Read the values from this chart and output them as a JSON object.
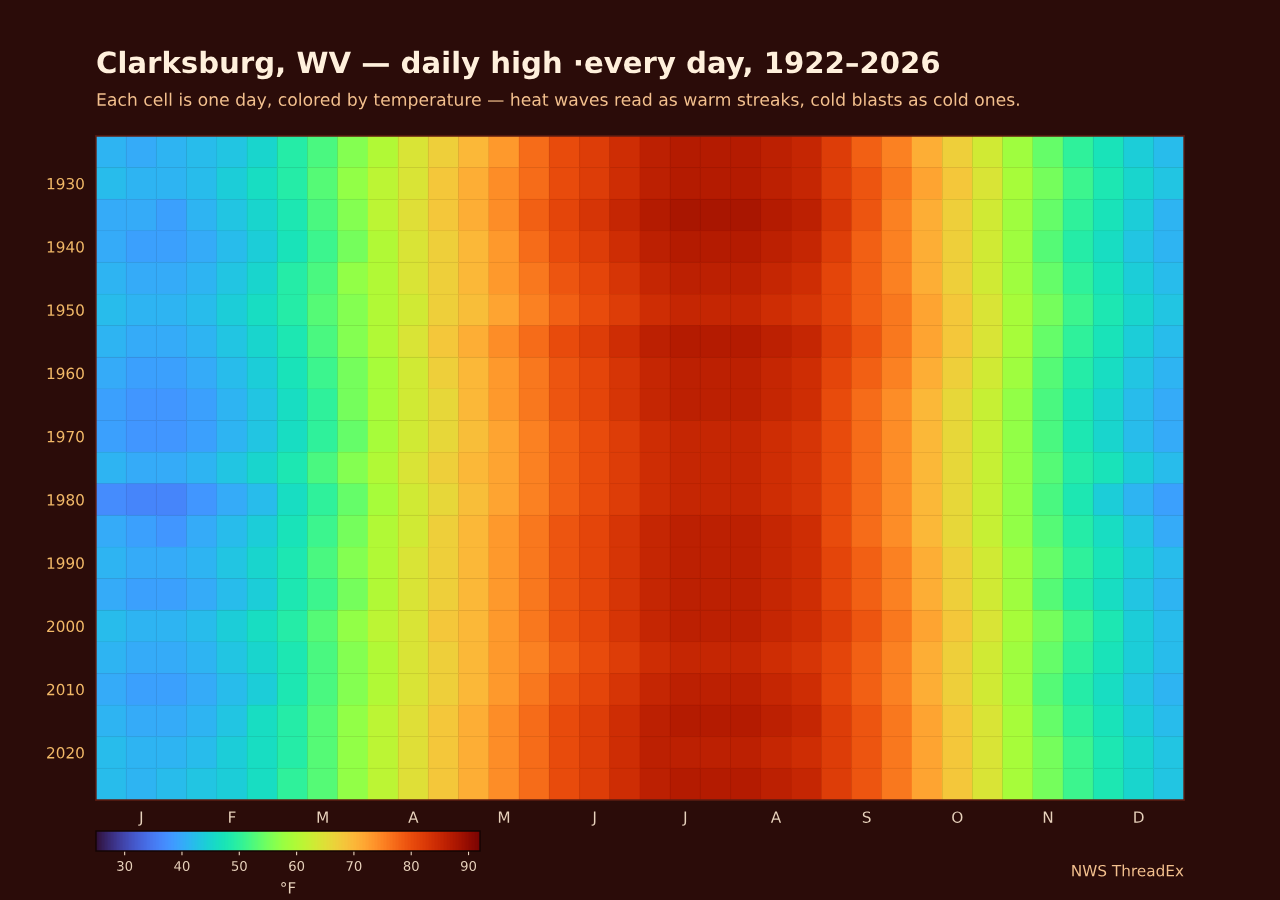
{
  "chart_data": {
    "type": "heatmap",
    "title": "Clarksburg, WV — daily high ·every day, 1922–2026",
    "subtitle": "Each cell is one day, colored by temperature — heat waves read as warm streaks, cold blasts as cold ones.",
    "categories": [
      null,
      "J",
      null,
      null,
      "F",
      null,
      null,
      "M",
      null,
      null,
      "A",
      null,
      null,
      "M",
      null,
      null,
      "J",
      null,
      null,
      "J",
      null,
      null,
      "A",
      null,
      null,
      "S",
      null,
      null,
      "O",
      null,
      null,
      "N",
      null,
      null,
      "D",
      null
    ],
    "y_categories": [
      null,
      "1930",
      null,
      "1940",
      null,
      "1950",
      null,
      "1960",
      null,
      "1970",
      null,
      "1980",
      null,
      "1990",
      null,
      "2000",
      null,
      "2010",
      null,
      "2020",
      null
    ],
    "cells": [
      [
        41,
        40,
        41,
        42,
        43,
        45,
        49,
        52,
        56,
        60,
        64,
        67,
        70,
        73,
        77,
        80,
        82,
        84,
        86,
        87,
        87,
        87,
        86,
        85,
        82,
        78,
        75,
        71,
        67,
        63,
        58,
        54,
        50,
        47,
        44,
        42
      ],
      [
        42,
        41,
        41,
        42,
        44,
        46,
        49,
        53,
        57,
        61,
        64,
        68,
        71,
        74,
        77,
        80,
        82,
        84,
        86,
        87,
        87,
        87,
        86,
        85,
        82,
        79,
        76,
        72,
        68,
        64,
        59,
        55,
        51,
        48,
        45,
        43
      ],
      [
        40,
        40,
        39,
        41,
        43,
        45,
        48,
        52,
        56,
        61,
        65,
        68,
        71,
        74,
        78,
        81,
        83,
        85,
        87,
        88,
        88,
        88,
        87,
        86,
        83,
        79,
        75,
        71,
        67,
        63,
        58,
        54,
        50,
        47,
        44,
        41
      ],
      [
        40,
        39,
        39,
        40,
        42,
        44,
        47,
        51,
        55,
        60,
        64,
        67,
        70,
        73,
        77,
        80,
        82,
        84,
        86,
        87,
        87,
        87,
        86,
        85,
        82,
        78,
        75,
        71,
        67,
        63,
        58,
        53,
        49,
        46,
        43,
        41
      ],
      [
        41,
        40,
        40,
        41,
        43,
        45,
        49,
        52,
        57,
        60,
        64,
        67,
        70,
        73,
        76,
        79,
        81,
        83,
        85,
        86,
        86,
        86,
        85,
        84,
        81,
        78,
        75,
        71,
        67,
        63,
        58,
        54,
        50,
        47,
        44,
        42
      ],
      [
        42,
        41,
        41,
        42,
        44,
        46,
        49,
        53,
        56,
        60,
        63,
        67,
        69,
        72,
        75,
        78,
        80,
        82,
        84,
        85,
        85,
        85,
        84,
        83,
        81,
        78,
        76,
        72,
        68,
        64,
        59,
        55,
        51,
        48,
        45,
        43
      ],
      [
        41,
        40,
        40,
        41,
        43,
        45,
        48,
        52,
        56,
        60,
        64,
        68,
        71,
        74,
        77,
        80,
        82,
        84,
        86,
        87,
        87,
        87,
        86,
        85,
        82,
        79,
        76,
        72,
        68,
        64,
        59,
        54,
        50,
        47,
        44,
        42
      ],
      [
        40,
        39,
        39,
        40,
        42,
        44,
        47,
        51,
        55,
        59,
        63,
        67,
        70,
        73,
        76,
        79,
        81,
        83,
        85,
        86,
        86,
        86,
        85,
        84,
        81,
        78,
        75,
        71,
        67,
        63,
        58,
        53,
        49,
        46,
        43,
        41
      ],
      [
        39,
        38,
        38,
        39,
        41,
        43,
        46,
        50,
        55,
        59,
        63,
        66,
        70,
        73,
        76,
        79,
        81,
        83,
        85,
        86,
        86,
        86,
        85,
        84,
        80,
        77,
        74,
        70,
        66,
        62,
        57,
        52,
        48,
        45,
        42,
        40
      ],
      [
        39,
        38,
        38,
        39,
        41,
        43,
        46,
        50,
        54,
        59,
        63,
        66,
        69,
        72,
        75,
        78,
        80,
        82,
        84,
        85,
        85,
        85,
        84,
        83,
        80,
        77,
        74,
        70,
        66,
        62,
        57,
        52,
        48,
        45,
        42,
        40
      ],
      [
        41,
        40,
        40,
        41,
        43,
        45,
        48,
        52,
        56,
        60,
        64,
        67,
        70,
        72,
        75,
        78,
        80,
        82,
        84,
        85,
        85,
        85,
        84,
        83,
        80,
        77,
        74,
        70,
        66,
        62,
        57,
        53,
        49,
        47,
        44,
        42
      ],
      [
        37,
        36,
        36,
        38,
        40,
        42,
        46,
        50,
        54,
        59,
        63,
        66,
        69,
        72,
        75,
        78,
        80,
        82,
        84,
        85,
        85,
        85,
        84,
        83,
        80,
        77,
        74,
        70,
        66,
        62,
        57,
        52,
        48,
        44,
        41,
        39
      ],
      [
        40,
        39,
        38,
        40,
        42,
        44,
        47,
        51,
        55,
        60,
        63,
        67,
        70,
        73,
        76,
        79,
        81,
        83,
        85,
        86,
        86,
        86,
        85,
        84,
        80,
        77,
        74,
        70,
        66,
        62,
        57,
        53,
        49,
        46,
        43,
        40
      ],
      [
        41,
        40,
        40,
        41,
        43,
        45,
        48,
        52,
        56,
        60,
        64,
        67,
        70,
        73,
        76,
        79,
        81,
        83,
        85,
        86,
        86,
        86,
        85,
        84,
        81,
        78,
        75,
        71,
        67,
        63,
        58,
        54,
        50,
        47,
        44,
        42
      ],
      [
        40,
        39,
        39,
        40,
        42,
        44,
        48,
        51,
        55,
        60,
        64,
        67,
        70,
        73,
        76,
        79,
        81,
        83,
        85,
        86,
        86,
        86,
        85,
        84,
        81,
        78,
        75,
        71,
        67,
        63,
        58,
        53,
        49,
        46,
        43,
        41
      ],
      [
        42,
        41,
        41,
        42,
        44,
        46,
        49,
        53,
        57,
        61,
        64,
        68,
        70,
        73,
        76,
        79,
        81,
        83,
        85,
        86,
        86,
        86,
        85,
        84,
        82,
        79,
        76,
        72,
        68,
        64,
        59,
        55,
        51,
        48,
        44,
        42
      ],
      [
        41,
        40,
        40,
        41,
        43,
        45,
        48,
        52,
        56,
        60,
        64,
        67,
        70,
        73,
        75,
        78,
        80,
        82,
        84,
        85,
        85,
        85,
        84,
        83,
        81,
        78,
        75,
        71,
        67,
        63,
        58,
        54,
        50,
        47,
        44,
        42
      ],
      [
        40,
        39,
        39,
        40,
        42,
        44,
        48,
        52,
        56,
        60,
        64,
        67,
        70,
        73,
        76,
        79,
        81,
        83,
        85,
        86,
        86,
        86,
        85,
        84,
        81,
        78,
        75,
        71,
        67,
        63,
        58,
        53,
        49,
        46,
        43,
        41
      ],
      [
        41,
        40,
        40,
        41,
        43,
        46,
        49,
        53,
        57,
        61,
        65,
        68,
        71,
        74,
        77,
        80,
        82,
        84,
        86,
        87,
        87,
        87,
        86,
        85,
        82,
        79,
        76,
        72,
        68,
        64,
        59,
        54,
        50,
        47,
        44,
        42
      ],
      [
        42,
        41,
        41,
        42,
        44,
        46,
        49,
        53,
        57,
        61,
        65,
        68,
        71,
        74,
        77,
        80,
        82,
        84,
        86,
        86,
        86,
        86,
        85,
        84,
        82,
        79,
        76,
        72,
        68,
        64,
        59,
        55,
        51,
        48,
        45,
        43
      ],
      [
        42,
        41,
        42,
        43,
        44,
        46,
        50,
        53,
        57,
        61,
        65,
        68,
        71,
        74,
        77,
        80,
        82,
        84,
        86,
        87,
        87,
        87,
        86,
        85,
        82,
        79,
        76,
        72,
        68,
        64,
        59,
        55,
        51,
        48,
        45,
        43
      ]
    ],
    "clim": [
      25,
      92
    ],
    "cticks": [
      30,
      40,
      50,
      60,
      70,
      80,
      90
    ],
    "clabel": "°F",
    "annotations": [
      "NWS ThreadEx"
    ]
  }
}
